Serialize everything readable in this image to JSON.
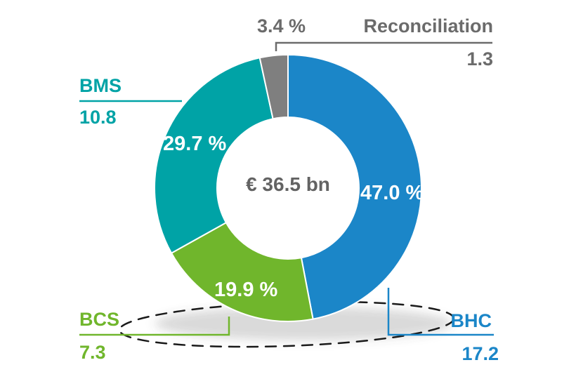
{
  "colors": {
    "bhc_blue": "#1b86c8",
    "bcs_green": "#70b62c",
    "bms_teal": "#00a3a6",
    "reconciliation_gray": "#7f7f7f",
    "outside_label_gray": "#6b6b6b",
    "center_text_gray": "#636363",
    "slice_label_white": "#ffffff",
    "annotation_black": "#1a1a1a",
    "background": "#ffffff"
  },
  "chart_data": {
    "type": "pie",
    "variant": "donut",
    "title": "",
    "center_label": "€ 36.5 bn",
    "total_value": 36.5,
    "units": "€ bn",
    "direction": "clockwise",
    "start_angle_deg": 0,
    "legend_position": "callout-labels-around-chart",
    "segments": [
      {
        "label": "BHC",
        "percent": 47.0,
        "percent_text": "47.0 %",
        "value": 17.2,
        "value_text": "17.2",
        "color": "#1b86c8",
        "label_color": "#1b86c8"
      },
      {
        "label": "BCS",
        "percent": 19.9,
        "percent_text": "19.9 %",
        "value": 7.3,
        "value_text": "7.3",
        "color": "#70b62c",
        "label_color": "#70b62c"
      },
      {
        "label": "BMS",
        "percent": 29.7,
        "percent_text": "29.7 %",
        "value": 10.8,
        "value_text": "10.8",
        "color": "#00a3a6",
        "label_color": "#00a3a6"
      },
      {
        "label": "Reconciliation",
        "percent": 3.4,
        "percent_text": "3.4 %",
        "value": 1.3,
        "value_text": "1.3",
        "color": "#7f7f7f",
        "label_color": "#6b6b6b"
      }
    ],
    "annotations": [
      "hand-drawn dashed black oval looping around the BCS and BHC callout labels at the bottom of the chart"
    ]
  }
}
